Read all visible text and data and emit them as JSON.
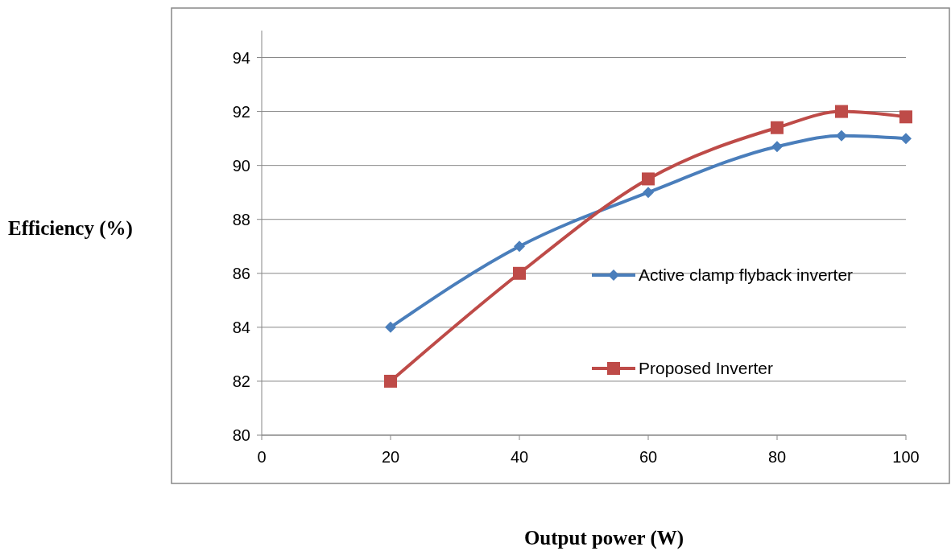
{
  "chart_data": {
    "type": "line",
    "xlabel": "Output power (W)",
    "ylabel": "Efficiency (%)",
    "x": [
      20,
      40,
      60,
      80,
      90,
      100
    ],
    "series": [
      {
        "name": "Active clamp flyback inverter",
        "color": "#4a7ebb",
        "marker": "diamond",
        "values": [
          84,
          87,
          89,
          90.7,
          91.1,
          91
        ]
      },
      {
        "name": "Proposed Inverter",
        "color": "#be4b48",
        "marker": "square",
        "values": [
          82,
          86,
          89.5,
          91.4,
          92,
          91.8
        ]
      }
    ],
    "xlim": [
      0,
      100
    ],
    "xticks": [
      0,
      20,
      40,
      60,
      80,
      100
    ],
    "ylim": [
      80,
      95
    ],
    "yticks": [
      80,
      82,
      84,
      86,
      88,
      90,
      92,
      94
    ],
    "grid": "y",
    "legend": "right"
  }
}
